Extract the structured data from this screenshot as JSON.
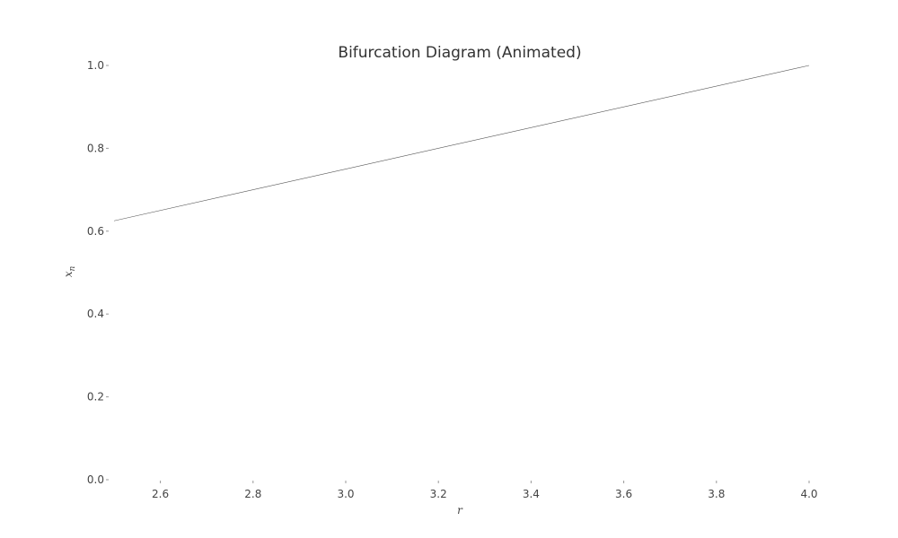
{
  "chart_data": {
    "type": "line",
    "title": "Bifurcation Diagram (Animated)",
    "xlabel": "r",
    "ylabel": "x",
    "ylabel_subscript": "n",
    "xlim": [
      2.5,
      4.0
    ],
    "ylim": [
      0.0,
      1.0
    ],
    "xticks": [
      2.6,
      2.8,
      3.0,
      3.2,
      3.4,
      3.6,
      3.8,
      4.0
    ],
    "xtick_labels": [
      "2.6",
      "2.8",
      "3.0",
      "3.2",
      "3.4",
      "3.6",
      "3.8",
      "4.0"
    ],
    "yticks": [
      0.0,
      0.2,
      0.4,
      0.6,
      0.8,
      1.0
    ],
    "ytick_labels": [
      "0.0",
      "0.2",
      "0.4",
      "0.6",
      "0.8",
      "1.0"
    ],
    "grid": false,
    "series": [
      {
        "x": [
          2.5,
          4.0
        ],
        "y": [
          0.625,
          1.0
        ],
        "color": "#555555"
      }
    ]
  }
}
